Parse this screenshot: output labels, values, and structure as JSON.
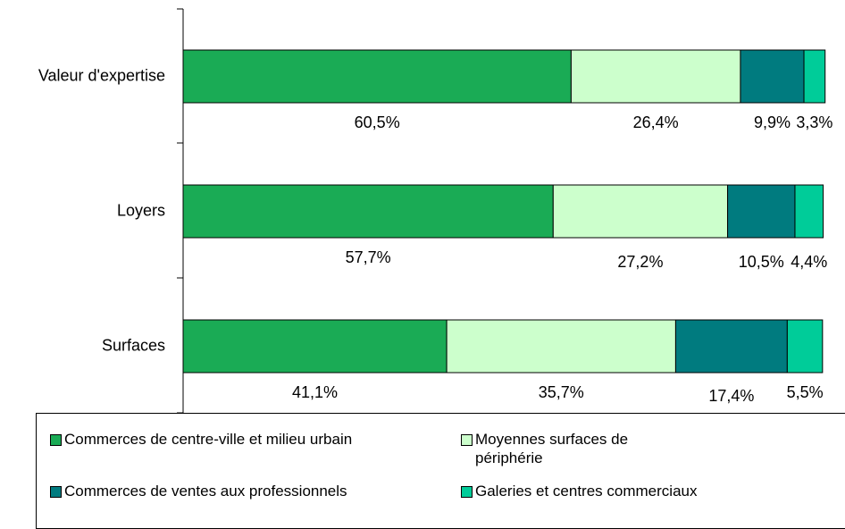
{
  "chart_data": {
    "type": "stacked_barh",
    "categories": [
      "Valeur d'expertise",
      "Loyers",
      "Surfaces"
    ],
    "xlim": [
      0,
      100
    ],
    "series": [
      {
        "name": "Commerces de centre-ville et milieu urbain",
        "color": "#1aab55",
        "values": [
          60.5,
          57.7,
          41.1
        ],
        "value_labels": [
          "60,5%",
          "57,7%",
          "41,1%"
        ]
      },
      {
        "name": "Moyennes surfaces de périphérie",
        "color": "#ccffcc",
        "values": [
          26.4,
          27.2,
          35.7
        ],
        "value_labels": [
          "26,4%",
          "27,2%",
          "35,7%"
        ]
      },
      {
        "name": "Commerces de ventes aux professionnels",
        "color": "#007b7f",
        "values": [
          9.9,
          10.5,
          17.4
        ],
        "value_labels": [
          "9,9%",
          "10,5%",
          "17,4%"
        ]
      },
      {
        "name": "Galeries et centres commerciaux",
        "color": "#00cc99",
        "values": [
          3.3,
          4.4,
          5.5
        ],
        "value_labels": [
          "3,3%",
          "4,4%",
          "5,5%"
        ]
      }
    ],
    "legend": "bottom"
  }
}
